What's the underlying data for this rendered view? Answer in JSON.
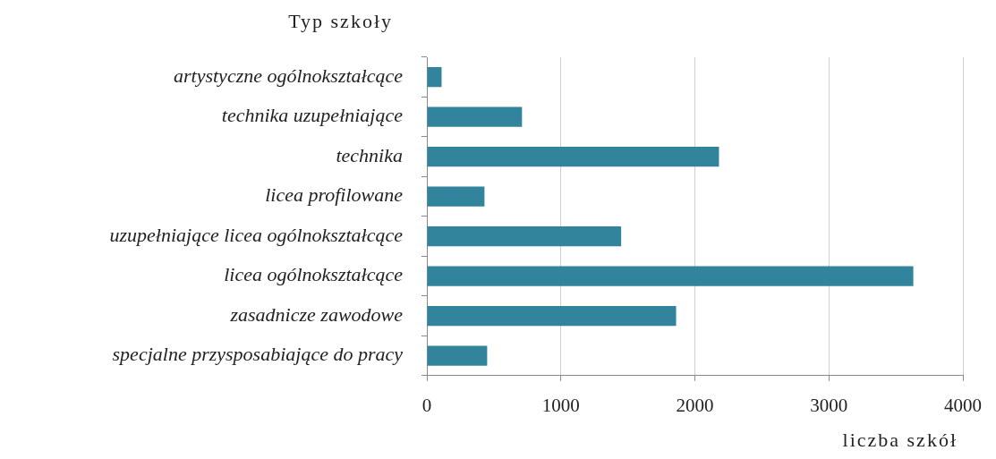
{
  "chart_data": {
    "type": "bar",
    "orientation": "horizontal",
    "ylabel": "Typ szkoły",
    "xlabel": "liczba szkół",
    "categories": [
      "artystyczne ogólnokształcące",
      "technika uzupełniające",
      "technika",
      "licea profilowane",
      "uzupełniające licea ogólnokształcące",
      "licea ogólnokształcące",
      "zasadnicze zawodowe",
      "specjalne przysposabiające do pracy"
    ],
    "values": [
      110,
      710,
      2180,
      430,
      1450,
      3630,
      1860,
      450
    ],
    "color": "#31849b",
    "xlim": [
      0,
      4000
    ],
    "xticks": [
      0,
      1000,
      2000,
      3000,
      4000
    ],
    "grid": "x"
  }
}
